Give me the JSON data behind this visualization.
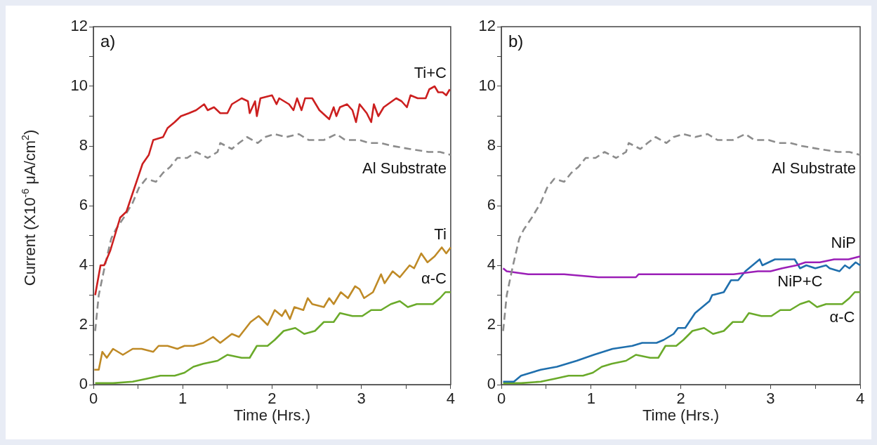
{
  "chart_data": [
    {
      "type": "line",
      "title": "a)",
      "xlabel": "Time (Hrs.)",
      "ylabel": "Current (X10$^{-6}$ μA/cm$^{2}$)",
      "xlim": [
        0,
        4
      ],
      "ylim": [
        0,
        12
      ],
      "xticks": [
        0,
        {
          "value": 0.5,
          "label": null
        },
        1,
        {
          "value": 1.5,
          "label": null
        },
        2,
        {
          "value": 2.5,
          "label": null
        },
        3,
        {
          "value": 3.5,
          "label": null
        },
        4
      ],
      "yticks": [
        0,
        {
          "value": 1,
          "label": null
        },
        2,
        {
          "value": 3,
          "label": null
        },
        4,
        {
          "value": 5,
          "label": null
        },
        6,
        {
          "value": 7,
          "label": null
        },
        8,
        {
          "value": 9,
          "label": null
        },
        10,
        {
          "value": 11,
          "label": null
        },
        12
      ],
      "grid": false,
      "legend": false,
      "marker": "none",
      "series": [
        {
          "name": "Ti+C",
          "color": "#cc1f1f",
          "line_style": "solid",
          "x": [
            0.02,
            0.08,
            0.12,
            0.19,
            0.25,
            0.3,
            0.37,
            0.46,
            0.55,
            0.62,
            0.67,
            0.78,
            0.83,
            0.91,
            0.98,
            1.07,
            1.15,
            1.24,
            1.28,
            1.35,
            1.42,
            1.5,
            1.55,
            1.66,
            1.73,
            1.75,
            1.81,
            1.83,
            1.87,
            2.0,
            2.05,
            2.08,
            2.19,
            2.24,
            2.28,
            2.33,
            2.37,
            2.45,
            2.53,
            2.64,
            2.69,
            2.72,
            2.76,
            2.84,
            2.9,
            2.94,
            2.98,
            3.06,
            3.11,
            3.14,
            3.19,
            3.25,
            3.39,
            3.45,
            3.51,
            3.55,
            3.63,
            3.72,
            3.76,
            3.82,
            3.86,
            3.91,
            3.95,
            3.99
          ],
          "values": [
            3.0,
            4.0,
            4.0,
            4.5,
            5.1,
            5.6,
            5.8,
            6.6,
            7.4,
            7.7,
            8.2,
            8.3,
            8.6,
            8.8,
            9.0,
            9.1,
            9.2,
            9.4,
            9.2,
            9.3,
            9.1,
            9.1,
            9.4,
            9.6,
            9.5,
            9.1,
            9.5,
            9.0,
            9.6,
            9.7,
            9.4,
            9.6,
            9.4,
            9.2,
            9.6,
            9.2,
            9.6,
            9.6,
            9.2,
            8.9,
            9.3,
            9.0,
            9.3,
            9.4,
            9.2,
            8.8,
            9.4,
            9.1,
            8.8,
            9.4,
            9.0,
            9.3,
            9.6,
            9.5,
            9.3,
            9.7,
            9.6,
            9.6,
            9.9,
            10.0,
            9.8,
            9.8,
            9.7,
            9.9
          ]
        },
        {
          "name": "Al Substrate",
          "color": "#8c8c8c",
          "line_style": "dashed",
          "x": [
            0.02,
            0.06,
            0.13,
            0.2,
            0.25,
            0.34,
            0.44,
            0.51,
            0.59,
            0.7,
            0.78,
            0.86,
            0.94,
            1.05,
            1.15,
            1.28,
            1.39,
            1.42,
            1.55,
            1.63,
            1.72,
            1.84,
            1.92,
            2.03,
            2.16,
            2.3,
            2.41,
            2.58,
            2.72,
            2.82,
            2.98,
            3.09,
            3.22,
            3.35,
            3.54,
            3.75,
            3.88,
            4.0
          ],
          "values": [
            1.8,
            3.0,
            4.0,
            4.9,
            5.2,
            5.6,
            6.1,
            6.6,
            6.9,
            6.8,
            7.1,
            7.3,
            7.6,
            7.6,
            7.8,
            7.6,
            7.8,
            8.1,
            7.9,
            8.1,
            8.3,
            8.1,
            8.3,
            8.4,
            8.3,
            8.4,
            8.2,
            8.2,
            8.4,
            8.2,
            8.2,
            8.1,
            8.1,
            8.0,
            7.9,
            7.8,
            7.8,
            7.7
          ]
        },
        {
          "name": "Ti",
          "color": "#bf8a26",
          "line_style": "solid",
          "x": [
            0.01,
            0.06,
            0.1,
            0.15,
            0.22,
            0.33,
            0.44,
            0.54,
            0.67,
            0.73,
            0.83,
            0.94,
            1.02,
            1.12,
            1.23,
            1.34,
            1.42,
            1.55,
            1.63,
            1.76,
            1.85,
            1.95,
            2.03,
            2.11,
            2.15,
            2.2,
            2.25,
            2.35,
            2.4,
            2.45,
            2.58,
            2.64,
            2.69,
            2.77,
            2.85,
            2.93,
            2.98,
            3.03,
            3.13,
            3.22,
            3.26,
            3.35,
            3.43,
            3.54,
            3.59,
            3.67,
            3.74,
            3.82,
            3.9,
            3.95,
            4.0
          ],
          "values": [
            0.5,
            0.5,
            1.1,
            0.9,
            1.2,
            1.0,
            1.2,
            1.2,
            1.1,
            1.3,
            1.3,
            1.2,
            1.3,
            1.3,
            1.4,
            1.6,
            1.4,
            1.7,
            1.6,
            2.1,
            2.3,
            2.0,
            2.5,
            2.3,
            2.5,
            2.2,
            2.6,
            2.5,
            2.9,
            2.7,
            2.6,
            2.9,
            2.7,
            3.1,
            2.9,
            3.3,
            3.2,
            2.9,
            3.1,
            3.7,
            3.4,
            3.8,
            3.6,
            4.0,
            3.9,
            4.4,
            4.1,
            4.3,
            4.6,
            4.4,
            4.6
          ]
        },
        {
          "name": "α-C",
          "color": "#6aaa2a",
          "line_style": "solid",
          "x": [
            0.02,
            0.22,
            0.44,
            0.6,
            0.75,
            0.91,
            1.02,
            1.12,
            1.23,
            1.39,
            1.5,
            1.66,
            1.75,
            1.83,
            1.95,
            2.03,
            2.13,
            2.26,
            2.36,
            2.48,
            2.58,
            2.69,
            2.76,
            2.9,
            3.01,
            3.11,
            3.22,
            3.33,
            3.43,
            3.52,
            3.62,
            3.72,
            3.8,
            3.88,
            3.94,
            4.0
          ],
          "values": [
            0.05,
            0.05,
            0.1,
            0.2,
            0.3,
            0.3,
            0.4,
            0.6,
            0.7,
            0.8,
            1.0,
            0.9,
            0.9,
            1.3,
            1.3,
            1.5,
            1.8,
            1.9,
            1.7,
            1.8,
            2.1,
            2.1,
            2.4,
            2.3,
            2.3,
            2.5,
            2.5,
            2.7,
            2.8,
            2.6,
            2.7,
            2.7,
            2.7,
            2.9,
            3.1,
            3.1
          ]
        }
      ]
    },
    {
      "type": "line",
      "title": "b)",
      "xlabel": "Time (Hrs.)",
      "xlim": [
        0,
        4
      ],
      "ylim": [
        0,
        12
      ],
      "xticks": [
        0,
        {
          "value": 0.5,
          "label": null
        },
        1,
        {
          "value": 1.5,
          "label": null
        },
        2,
        {
          "value": 2.5,
          "label": null
        },
        3,
        {
          "value": 3.5,
          "label": null
        },
        4
      ],
      "yticks": [
        0,
        {
          "value": 1,
          "label": null
        },
        2,
        {
          "value": 3,
          "label": null
        },
        4,
        {
          "value": 5,
          "label": null
        },
        6,
        {
          "value": 7,
          "label": null
        },
        8,
        {
          "value": 9,
          "label": null
        },
        10,
        {
          "value": 11,
          "label": null
        },
        12
      ],
      "grid": false,
      "legend": false,
      "marker": "none",
      "series": [
        {
          "name": "Al Substrate",
          "color": "#8c8c8c",
          "line_style": "dashed",
          "x": [
            0.02,
            0.06,
            0.13,
            0.2,
            0.25,
            0.34,
            0.44,
            0.51,
            0.59,
            0.7,
            0.78,
            0.86,
            0.94,
            1.05,
            1.15,
            1.28,
            1.39,
            1.42,
            1.55,
            1.63,
            1.72,
            1.84,
            1.92,
            2.03,
            2.16,
            2.3,
            2.41,
            2.58,
            2.72,
            2.82,
            2.98,
            3.09,
            3.22,
            3.35,
            3.54,
            3.75,
            3.88,
            4.0
          ],
          "values": [
            1.8,
            3.0,
            4.0,
            4.9,
            5.2,
            5.6,
            6.1,
            6.6,
            6.9,
            6.8,
            7.1,
            7.3,
            7.6,
            7.6,
            7.8,
            7.6,
            7.8,
            8.1,
            7.9,
            8.1,
            8.3,
            8.1,
            8.3,
            8.4,
            8.3,
            8.4,
            8.2,
            8.2,
            8.4,
            8.2,
            8.2,
            8.1,
            8.1,
            8.0,
            7.9,
            7.8,
            7.8,
            7.7
          ]
        },
        {
          "name": "NiP",
          "color": "#9b1fb7",
          "line_style": "solid",
          "x": [
            0.02,
            0.06,
            0.3,
            0.7,
            1.08,
            1.3,
            1.5,
            1.53,
            1.92,
            2.32,
            2.59,
            2.86,
            3.0,
            3.13,
            3.29,
            3.39,
            3.55,
            3.71,
            3.87,
            4.0
          ],
          "values": [
            3.9,
            3.8,
            3.7,
            3.7,
            3.6,
            3.6,
            3.6,
            3.7,
            3.7,
            3.7,
            3.7,
            3.8,
            3.8,
            3.9,
            4.0,
            4.1,
            4.1,
            4.2,
            4.2,
            4.3
          ]
        },
        {
          "name": "NiP+C",
          "color": "#1f6fad",
          "line_style": "solid",
          "x": [
            0.02,
            0.14,
            0.22,
            0.44,
            0.62,
            0.84,
            1.03,
            1.24,
            1.46,
            1.57,
            1.73,
            1.81,
            1.92,
            1.97,
            2.05,
            2.16,
            2.24,
            2.32,
            2.35,
            2.48,
            2.56,
            2.64,
            2.72,
            2.8,
            2.88,
            2.91,
            3.05,
            3.13,
            3.23,
            3.27,
            3.33,
            3.4,
            3.5,
            3.62,
            3.66,
            3.77,
            3.83,
            3.88,
            3.95,
            4.0
          ],
          "values": [
            0.1,
            0.1,
            0.3,
            0.5,
            0.6,
            0.8,
            1.0,
            1.2,
            1.3,
            1.4,
            1.4,
            1.5,
            1.7,
            1.9,
            1.9,
            2.4,
            2.6,
            2.8,
            3.0,
            3.1,
            3.5,
            3.5,
            3.8,
            4.0,
            4.2,
            4.0,
            4.2,
            4.2,
            4.2,
            4.2,
            3.9,
            4.0,
            3.9,
            4.0,
            3.9,
            3.8,
            4.0,
            3.9,
            4.1,
            4.0
          ]
        },
        {
          "name": "α-C",
          "color": "#6aaa2a",
          "line_style": "solid",
          "x": [
            0.02,
            0.22,
            0.44,
            0.6,
            0.75,
            0.91,
            1.02,
            1.12,
            1.23,
            1.39,
            1.5,
            1.66,
            1.75,
            1.83,
            1.95,
            2.03,
            2.13,
            2.26,
            2.36,
            2.48,
            2.58,
            2.69,
            2.76,
            2.9,
            3.01,
            3.11,
            3.22,
            3.33,
            3.43,
            3.52,
            3.62,
            3.72,
            3.8,
            3.88,
            3.94,
            4.0
          ],
          "values": [
            0.05,
            0.05,
            0.1,
            0.2,
            0.3,
            0.3,
            0.4,
            0.6,
            0.7,
            0.8,
            1.0,
            0.9,
            0.9,
            1.3,
            1.3,
            1.5,
            1.8,
            1.9,
            1.7,
            1.8,
            2.1,
            2.1,
            2.4,
            2.3,
            2.3,
            2.5,
            2.5,
            2.7,
            2.8,
            2.6,
            2.7,
            2.7,
            2.7,
            2.9,
            3.1,
            3.1
          ]
        }
      ]
    }
  ]
}
